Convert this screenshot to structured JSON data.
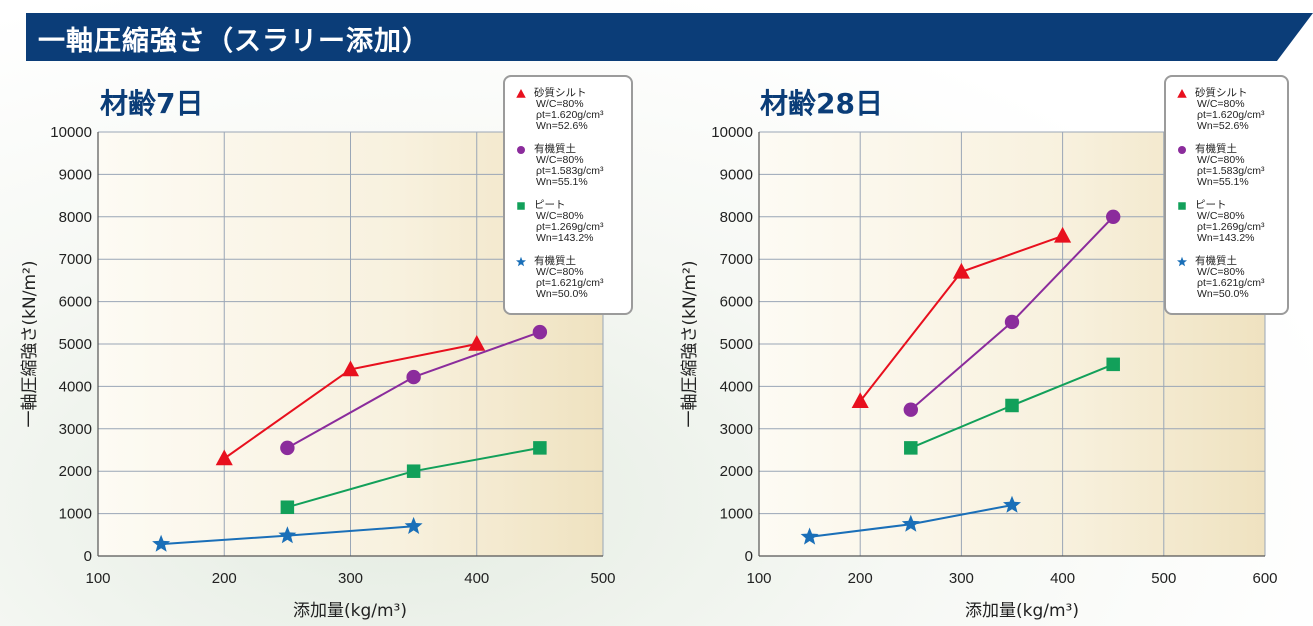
{
  "header": {
    "title": "一軸圧縮強さ（スラリー添加）"
  },
  "colors": {
    "banner": "#0b3d78",
    "title": "#0b3d78"
  },
  "chart_data": [
    {
      "type": "line",
      "title": "材齢7日",
      "xlabel": "添加量(kg/m³)",
      "ylabel": "一軸圧縮強さ(kN/m²)",
      "xlim": [
        100,
        500
      ],
      "ylim": [
        0,
        10000
      ],
      "xticks": [
        "100",
        "200",
        "300",
        "400",
        "500"
      ],
      "yticks": [
        "0",
        "1000",
        "2000",
        "3000",
        "4000",
        "5000",
        "6000",
        "7000",
        "8000",
        "9000",
        "10000"
      ],
      "grid": true,
      "legend_position": "top-right",
      "series": [
        {
          "name": "砂質シルト",
          "params": [
            "W/C=80%",
            "ρt=1.620g/cm³",
            "Wn=52.6%"
          ],
          "marker": "triangle",
          "color": "#e8101e",
          "points": [
            [
              200,
              2300
            ],
            [
              300,
              4400
            ],
            [
              400,
              5000
            ]
          ]
        },
        {
          "name": "有機質土",
          "params": [
            "W/C=80%",
            "ρt=1.583g/cm³",
            "Wn=55.1%"
          ],
          "marker": "circle",
          "color": "#8b2c9c",
          "points": [
            [
              250,
              2550
            ],
            [
              350,
              4220
            ],
            [
              450,
              5280
            ]
          ]
        },
        {
          "name": "ピート",
          "params": [
            "W/C=80%",
            "ρt=1.269g/cm³",
            "Wn=143.2%"
          ],
          "marker": "square",
          "color": "#12a05a",
          "points": [
            [
              250,
              1150
            ],
            [
              350,
              2000
            ],
            [
              450,
              2550
            ]
          ]
        },
        {
          "name": "有機質土",
          "params": [
            "W/C=80%",
            "ρt=1.621g/cm³",
            "Wn=50.0%"
          ],
          "marker": "star",
          "color": "#1a6fb8",
          "points": [
            [
              150,
              280
            ],
            [
              250,
              480
            ],
            [
              350,
              700
            ]
          ]
        }
      ]
    },
    {
      "type": "line",
      "title": "材齢28日",
      "xlabel": "添加量(kg/m³)",
      "ylabel": "一軸圧縮強さ(kN/m²)",
      "xlim": [
        100,
        600
      ],
      "ylim": [
        0,
        10000
      ],
      "xticks": [
        "100",
        "200",
        "300",
        "400",
        "500",
        "600"
      ],
      "yticks": [
        "0",
        "1000",
        "2000",
        "3000",
        "4000",
        "5000",
        "6000",
        "7000",
        "8000",
        "9000",
        "10000"
      ],
      "grid": true,
      "legend_position": "top-right",
      "series": [
        {
          "name": "砂質シルト",
          "params": [
            "W/C=80%",
            "ρt=1.620g/cm³",
            "Wn=52.6%"
          ],
          "marker": "triangle",
          "color": "#e8101e",
          "points": [
            [
              200,
              3650
            ],
            [
              300,
              6700
            ],
            [
              400,
              7550
            ]
          ]
        },
        {
          "name": "有機質土",
          "params": [
            "W/C=80%",
            "ρt=1.583g/cm³",
            "Wn=55.1%"
          ],
          "marker": "circle",
          "color": "#8b2c9c",
          "points": [
            [
              250,
              3450
            ],
            [
              350,
              5520
            ],
            [
              450,
              8000
            ]
          ]
        },
        {
          "name": "ピート",
          "params": [
            "W/C=80%",
            "ρt=1.269g/cm³",
            "Wn=143.2%"
          ],
          "marker": "square",
          "color": "#12a05a",
          "points": [
            [
              250,
              2550
            ],
            [
              350,
              3550
            ],
            [
              450,
              4520
            ]
          ]
        },
        {
          "name": "有機質土",
          "params": [
            "W/C=80%",
            "ρt=1.621g/cm³",
            "Wn=50.0%"
          ],
          "marker": "star",
          "color": "#1a6fb8",
          "points": [
            [
              150,
              450
            ],
            [
              250,
              750
            ],
            [
              350,
              1200
            ]
          ]
        }
      ]
    }
  ]
}
